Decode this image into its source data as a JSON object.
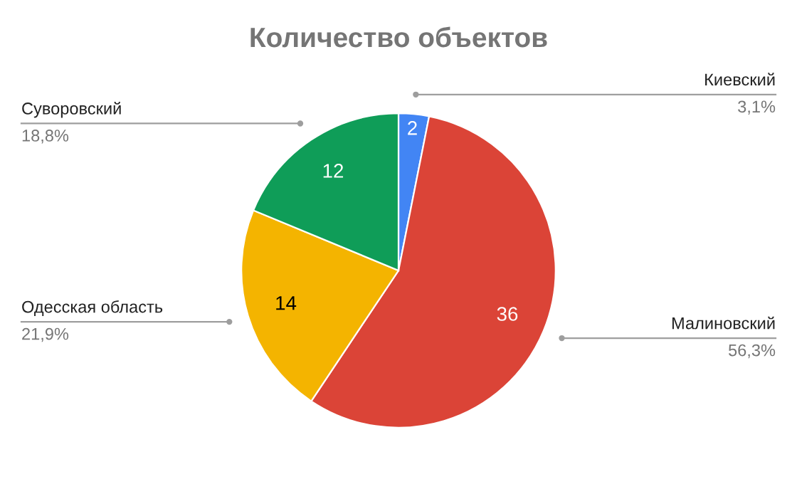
{
  "chart_data": {
    "type": "pie",
    "title": "Количество объектов",
    "categories": [
      "Киевский",
      "Малиновский",
      "Одесская область",
      "Суворовский"
    ],
    "values": [
      2,
      36,
      14,
      12
    ],
    "colors": [
      "#4285f4",
      "#db4437",
      "#f4b400",
      "#0f9d58"
    ],
    "data_labels": true,
    "annotations": [
      "3,1%",
      "56,3%",
      "21,9%",
      "18,8%"
    ],
    "legend": false
  }
}
